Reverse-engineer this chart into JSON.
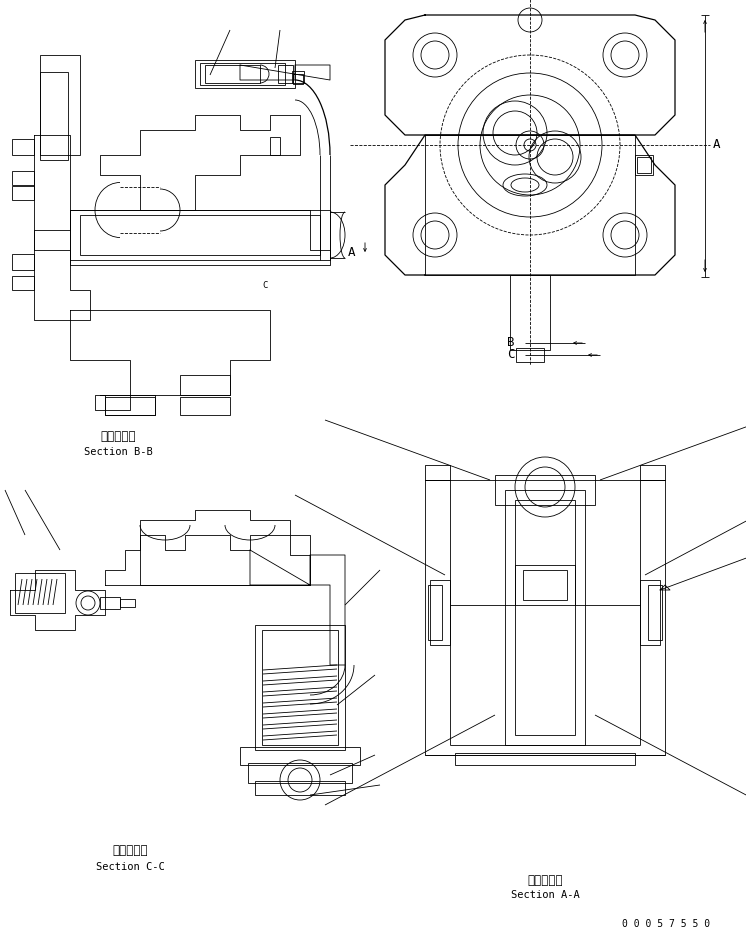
{
  "bg_color": "#ffffff",
  "line_color": "#000000",
  "lw1": 0.6,
  "lw2": 0.9,
  "font_jp": 8.5,
  "font_en": 7.5,
  "font_label": 9,
  "font_pn": 7,
  "part_number": "0 0 0 5 7 5 5 0",
  "bb_jp": "断面Ｂ－Ｂ",
  "bb_en": "Section B-B",
  "cc_jp": "断面Ｃ－Ｃ",
  "cc_en": "Section C-C",
  "aa_jp": "断面Ａ－Ａ",
  "aa_en": "Section A-A"
}
